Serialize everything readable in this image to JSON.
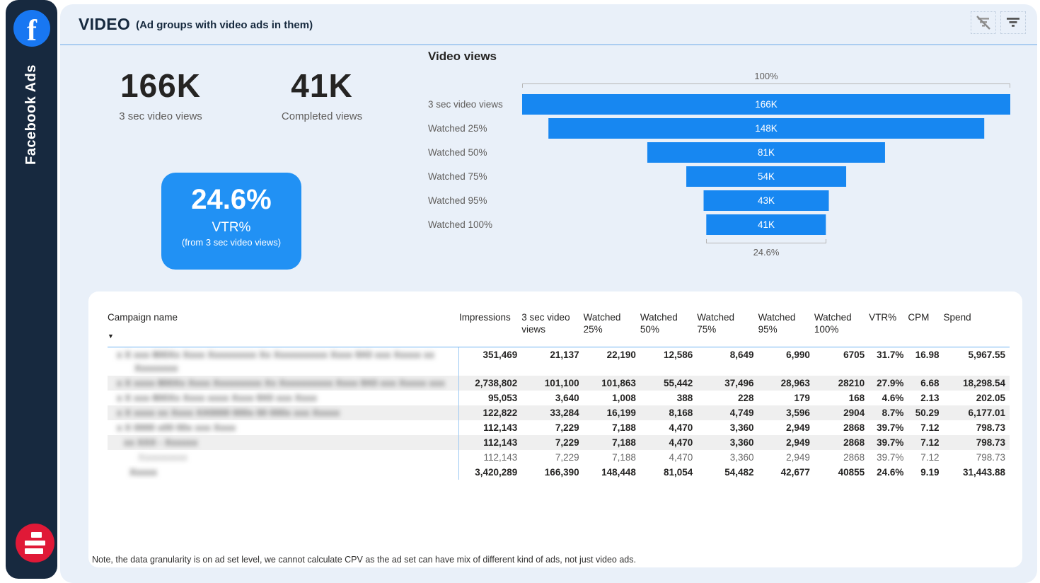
{
  "sidebar": {
    "brand": "Facebook Ads",
    "colors": {
      "background": "#17293f",
      "facebook_blue": "#1877f2",
      "logo_red": "#e01937"
    }
  },
  "header": {
    "title": "VIDEO",
    "subtitle": "(Ad groups with video ads in them)",
    "icons": [
      "clear-filter-icon",
      "filter-icon"
    ]
  },
  "kpis": [
    {
      "value": "166K",
      "label": "3 sec video views"
    },
    {
      "value": "41K",
      "label": "Completed views"
    }
  ],
  "vtr_card": {
    "value": "24.6%",
    "label": "VTR%",
    "sublabel": "(from 3 sec video views)",
    "background": "#2191f4"
  },
  "table_note": "Note, the data granularity is on ad set level, we cannot calculate CPV as the ad set can have mix of different kind of ads, not just video ads.",
  "chart_data": [
    {
      "type": "bar",
      "subtype": "funnel-horizontal-centered",
      "title": "Video views",
      "categories": [
        "3 sec video views",
        "Watched 25%",
        "Watched 50%",
        "Watched 75%",
        "Watched 95%",
        "Watched 100%"
      ],
      "values": [
        166390,
        148448,
        81054,
        54482,
        42677,
        40855
      ],
      "labels": [
        "166K",
        "148K",
        "81K",
        "54K",
        "43K",
        "41K"
      ],
      "top_axis_label": "100%",
      "bottom_label": "24.6%",
      "bar_color": "#1787f1",
      "xlim_pct": [
        0,
        100
      ],
      "grid": false,
      "legend": false
    },
    {
      "type": "table",
      "columns": [
        "Campaign name",
        "Impressions",
        "3 sec video views",
        "Watched 25%",
        "Watched 50%",
        "Watched 75%",
        "Watched 95%",
        "Watched 100%",
        "VTR%",
        "CPM",
        "Spend"
      ],
      "sort_column": "Campaign name",
      "rows": [
        {
          "name_redacted_lines": [
            "x X xxx 800Xx Xxxx Xxxxxxxxx Xx Xxxxxxxxxx Xxxx 9X0 xxx Xxxxx xx",
            "Xxxxxxxx"
          ],
          "indent": 0,
          "style": "bold",
          "values": [
            "351,469",
            "21,137",
            "22,190",
            "12,586",
            "8,649",
            "6,990",
            "6705",
            "31.7%",
            "16.98",
            "5,967.55"
          ]
        },
        {
          "name_redacted_lines": [
            "x X xxxx 800Xx Xxxx Xxxxxxxxx Xx Xxxxxxxxxx Xxxx 9X0 xxx Xxxxx xxx"
          ],
          "indent": 0,
          "style": "bold",
          "values": [
            "2,738,802",
            "101,100",
            "101,863",
            "55,442",
            "37,496",
            "28,963",
            "28210",
            "27.9%",
            "6.68",
            "18,298.54"
          ]
        },
        {
          "name_redacted_lines": [
            "x X xxx 800Xx Xxxx xxxx Xxxx 9X0 xxx Xxxx"
          ],
          "indent": 0,
          "style": "bold",
          "values": [
            "95,053",
            "3,640",
            "1,008",
            "388",
            "228",
            "179",
            "168",
            "4.6%",
            "2.13",
            "202.05"
          ]
        },
        {
          "name_redacted_lines": [
            "x X xxxx xx Xxxx XX0000 000x 00 000x xxx Xxxxx"
          ],
          "indent": 0,
          "style": "bold",
          "values": [
            "122,822",
            "33,284",
            "16,199",
            "8,168",
            "4,749",
            "3,596",
            "2904",
            "8.7%",
            "50.29",
            "6,177.01"
          ]
        },
        {
          "name_redacted_lines": [
            "x X 0000 x00 00x xxx Xxxx"
          ],
          "indent": 0,
          "style": "bold",
          "values": [
            "112,143",
            "7,229",
            "7,188",
            "4,470",
            "3,360",
            "2,949",
            "2868",
            "39.7%",
            "7.12",
            "798.73"
          ]
        },
        {
          "name_redacted_lines": [
            "xx XXX - Xxxxxx"
          ],
          "indent": 10,
          "style": "bold",
          "values": [
            "112,143",
            "7,229",
            "7,188",
            "4,470",
            "3,360",
            "2,949",
            "2868",
            "39.7%",
            "7.12",
            "798.73"
          ]
        },
        {
          "name_redacted_lines": [
            "Xxxxxxxxxx"
          ],
          "indent": 30,
          "style": "light",
          "values": [
            "112,143",
            "7,229",
            "7,188",
            "4,470",
            "3,360",
            "2,949",
            "2868",
            "39.7%",
            "7.12",
            "798.73"
          ]
        },
        {
          "name_redacted_lines": [
            "Xxxxx"
          ],
          "indent": 18,
          "style": "total",
          "values": [
            "3,420,289",
            "166,390",
            "148,448",
            "81,054",
            "54,482",
            "42,677",
            "40855",
            "24.6%",
            "9.19",
            "31,443.88"
          ]
        }
      ]
    }
  ]
}
